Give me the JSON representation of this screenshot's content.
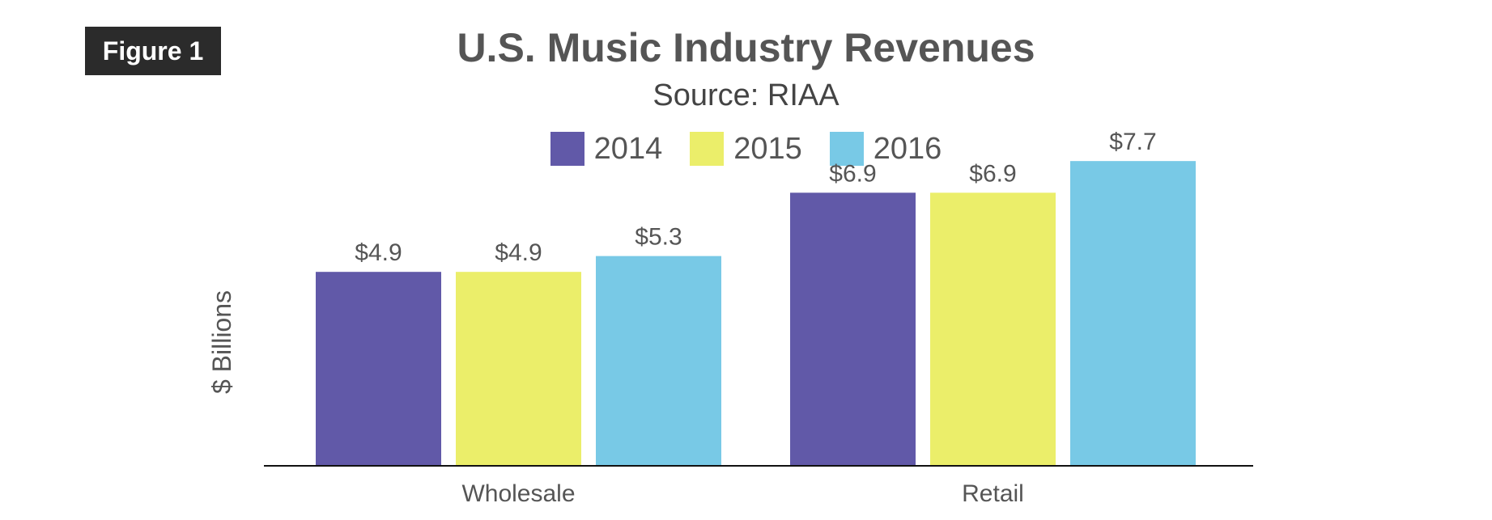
{
  "badge": {
    "label": "Figure 1"
  },
  "chart_data": {
    "type": "bar",
    "title": "U.S. Music Industry Revenues",
    "subtitle": "Source: RIAA",
    "ylabel": "$ Billions",
    "xlabel": "",
    "categories": [
      "Wholesale",
      "Retail"
    ],
    "series": [
      {
        "name": "2014",
        "color": "#6159a8",
        "values": [
          4.9,
          6.9
        ],
        "labels": [
          "$4.9",
          "$6.9"
        ]
      },
      {
        "name": "2015",
        "color": "#ebee6a",
        "values": [
          4.9,
          6.9
        ],
        "labels": [
          "$4.9",
          "$6.9"
        ]
      },
      {
        "name": "2016",
        "color": "#78c9e6",
        "values": [
          5.3,
          7.7
        ],
        "labels": [
          "$5.3",
          "$7.7"
        ]
      }
    ],
    "ylim": [
      0,
      8.5
    ],
    "grid": false,
    "legend_position": "top-center"
  }
}
